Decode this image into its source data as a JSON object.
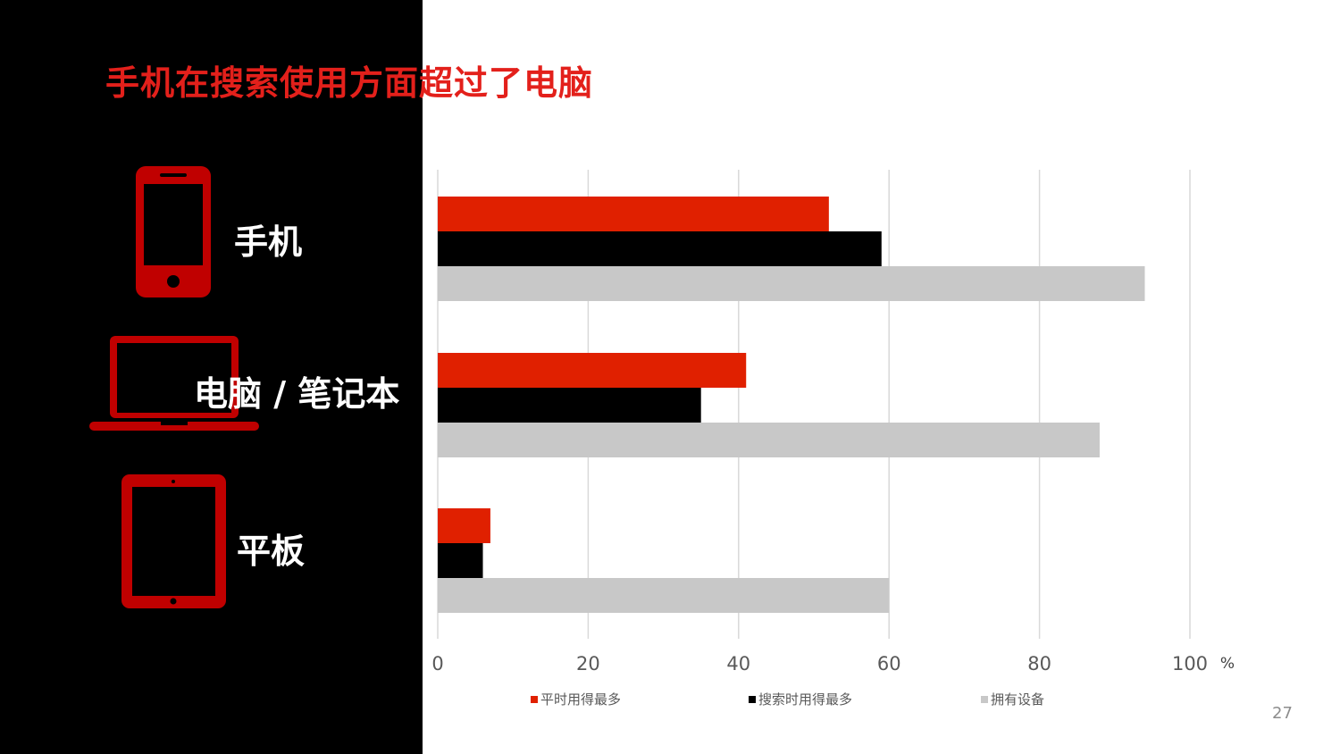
{
  "title": "手机在搜索使用方面超过了电脑",
  "page_number": "27",
  "devices": [
    {
      "label": "手机",
      "icon": "smartphone-icon"
    },
    {
      "label": "电脑 / 笔记本",
      "icon": "laptop-icon"
    },
    {
      "label": "平板",
      "icon": "tablet-icon"
    }
  ],
  "colors": {
    "accent_red": "#e3201b",
    "icon_red": "#c00000",
    "series_red": "#e02000",
    "series_black": "#000000",
    "series_gray": "#c8c8c8"
  },
  "chart_data": {
    "type": "bar",
    "orientation": "horizontal",
    "categories": [
      "手机",
      "电脑 / 笔记本",
      "平板"
    ],
    "series": [
      {
        "name": "平时用得最多",
        "values": [
          52,
          41,
          7
        ]
      },
      {
        "name": "搜索时用得最多",
        "values": [
          59,
          35,
          6
        ]
      },
      {
        "name": "拥有设备",
        "values": [
          94,
          88,
          60
        ]
      }
    ],
    "xlim": [
      0,
      100
    ],
    "xticks": [
      "0",
      "20",
      "40",
      "60",
      "80",
      "100"
    ],
    "xunit": "%",
    "grid": true,
    "legend": "bottom"
  }
}
